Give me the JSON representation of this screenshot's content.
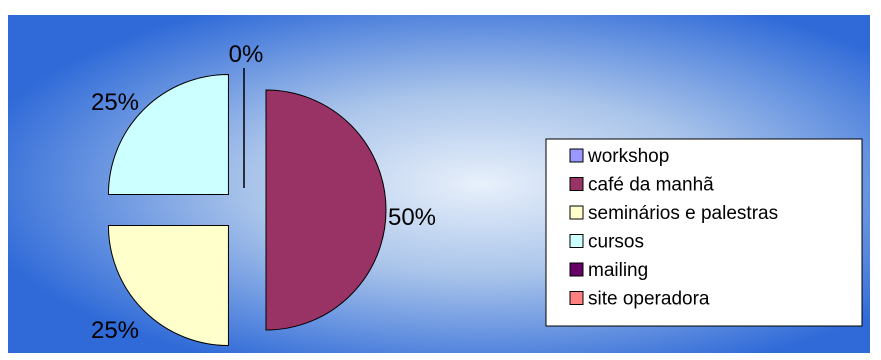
{
  "chart_data": {
    "type": "pie",
    "exploded": true,
    "legend_position": "right",
    "categories": [
      "workshop",
      "café da manhã",
      "seminários e palestras",
      "cursos",
      "mailing",
      "site operadora"
    ],
    "values": [
      0,
      50,
      25,
      25,
      0,
      0
    ],
    "value_labels": [
      "0%",
      "50%",
      "25%",
      "25%",
      "",
      ""
    ],
    "colors": [
      "#9999ff",
      "#993366",
      "#ffffcc",
      "#ccffff",
      "#660066",
      "#ff8080"
    ]
  }
}
